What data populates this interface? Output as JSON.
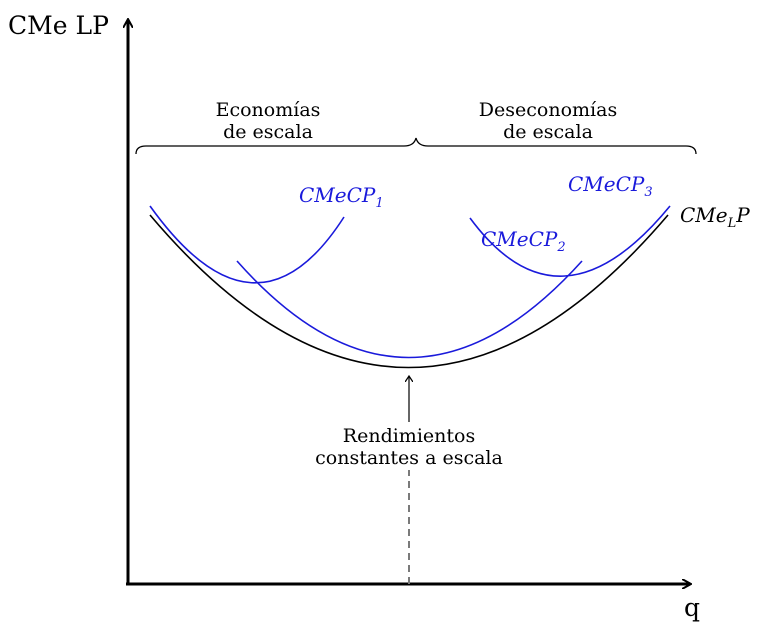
{
  "axes": {
    "y_label": "CMe LP",
    "x_label": "q"
  },
  "regions": {
    "left": [
      "Economías",
      "de escala"
    ],
    "right": [
      "Deseconomías",
      "de escala"
    ]
  },
  "curves": {
    "long_run": {
      "base": "CMe",
      "sub": "L",
      "tail": "P",
      "color": "#000000"
    },
    "short_run": [
      {
        "base": "CMeCP",
        "sub": "1",
        "color": "#1a1adb"
      },
      {
        "base": "CMeCP",
        "sub": "2",
        "color": "#1a1adb"
      },
      {
        "base": "CMeCP",
        "sub": "3",
        "color": "#1a1adb"
      }
    ]
  },
  "annotation": {
    "lines": [
      "Rendimientos",
      "constantes a escala"
    ]
  },
  "colors": {
    "axis": "#000000",
    "short_run": "#1a1adb",
    "dashed": "#7a7a7a"
  }
}
